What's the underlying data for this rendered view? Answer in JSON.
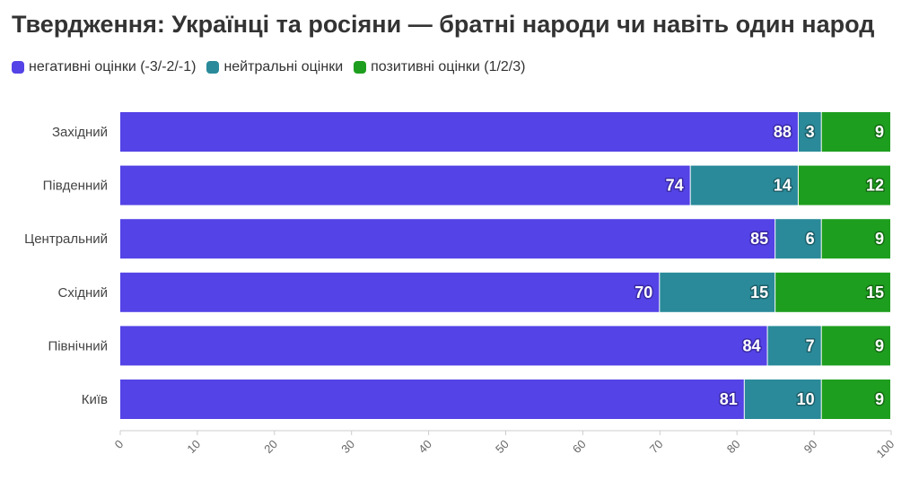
{
  "title": "Твердження: Українці та росіяни — братні народи чи навіть один народ",
  "legend": [
    {
      "label": "негативні оцінки (-3/-2/-1)",
      "color": "#5443e6"
    },
    {
      "label": "нейтральні оцінки",
      "color": "#2a8a99"
    },
    {
      "label": "позитивні оцінки (1/2/3)",
      "color": "#1e9e1e"
    }
  ],
  "chart_data": {
    "type": "bar",
    "orientation": "horizontal",
    "stacked": true,
    "categories": [
      "Західний",
      "Південний",
      "Центральний",
      "Східний",
      "Північний",
      "Київ"
    ],
    "series": [
      {
        "name": "негативні оцінки (-3/-2/-1)",
        "color": "#5443e6",
        "values": [
          88,
          74,
          85,
          70,
          84,
          81
        ]
      },
      {
        "name": "нейтральні оцінки",
        "color": "#2a8a99",
        "values": [
          3,
          14,
          6,
          15,
          7,
          10
        ]
      },
      {
        "name": "позитивні оцінки (1/2/3)",
        "color": "#1e9e1e",
        "values": [
          9,
          12,
          9,
          15,
          9,
          9
        ]
      }
    ],
    "xlim": [
      0,
      100
    ],
    "xticks": [
      0,
      10,
      20,
      30,
      40,
      50,
      60,
      70,
      80,
      90,
      100
    ],
    "grid": false,
    "legend_position": "top-left"
  }
}
